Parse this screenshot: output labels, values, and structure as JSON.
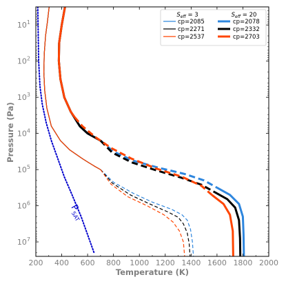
{
  "chart_data": {
    "type": "line",
    "title": "",
    "xlabel": "Temperature (K)",
    "ylabel": "Pressure (Pa)",
    "xlim": [
      200,
      2000
    ],
    "ylim_log10": [
      0.5,
      7.4
    ],
    "y_scale": "log",
    "y_inverted": true,
    "x_ticks": [
      "200",
      "400",
      "600",
      "800",
      "1000",
      "1200",
      "1400",
      "1600",
      "1800",
      "2000"
    ],
    "y_ticks": [
      {
        "base": "10",
        "exp": "1"
      },
      {
        "base": "10",
        "exp": "2"
      },
      {
        "base": "10",
        "exp": "3"
      },
      {
        "base": "10",
        "exp": "4"
      },
      {
        "base": "10",
        "exp": "5"
      },
      {
        "base": "10",
        "exp": "6"
      },
      {
        "base": "10",
        "exp": "7"
      }
    ],
    "legend": {
      "placement": "top-right",
      "col1_head": {
        "main": "S",
        "sub": "eff",
        "rest": " = 3"
      },
      "col2_head": {
        "main": "S",
        "sub": "eff",
        "rest": " = 20"
      },
      "entries_col1": [
        "cp=2085",
        "cp=2271",
        "cp=2537"
      ],
      "entries_col2": [
        "cp=2078",
        "cp=2332",
        "cp=2703"
      ]
    },
    "annotation": {
      "main": "P",
      "sub": "SAT"
    },
    "series": [
      {
        "name": "cp=2085",
        "group": "S_eff=3",
        "color": "#2e86de",
        "solid": [
          [
            303,
            0.5
          ],
          [
            290,
            0.9
          ],
          [
            275,
            1.3
          ],
          [
            265,
            1.8
          ],
          [
            262,
            2.3
          ],
          [
            268,
            2.8
          ],
          [
            285,
            3.3
          ],
          [
            320,
            3.8
          ],
          [
            390,
            4.2
          ],
          [
            460,
            4.45
          ],
          [
            560,
            4.7
          ],
          [
            650,
            4.9
          ],
          [
            700,
            5.0
          ]
        ],
        "dashed": [
          [
            700,
            5.0
          ],
          [
            800,
            5.35
          ],
          [
            950,
            5.65
          ],
          [
            1100,
            5.9
          ],
          [
            1250,
            6.1
          ],
          [
            1330,
            6.25
          ],
          [
            1370,
            6.4
          ],
          [
            1395,
            6.65
          ],
          [
            1410,
            7.0
          ],
          [
            1418,
            7.4
          ]
        ]
      },
      {
        "name": "cp=2271",
        "group": "S_eff=3",
        "color": "#000000",
        "solid": [
          [
            303,
            0.5
          ],
          [
            290,
            0.9
          ],
          [
            275,
            1.3
          ],
          [
            265,
            1.8
          ],
          [
            262,
            2.3
          ],
          [
            268,
            2.8
          ],
          [
            285,
            3.3
          ],
          [
            320,
            3.8
          ],
          [
            390,
            4.2
          ],
          [
            460,
            4.45
          ],
          [
            560,
            4.7
          ],
          [
            650,
            4.9
          ],
          [
            700,
            5.0
          ]
        ],
        "dashed": [
          [
            700,
            5.0
          ],
          [
            790,
            5.37
          ],
          [
            930,
            5.7
          ],
          [
            1080,
            5.95
          ],
          [
            1220,
            6.17
          ],
          [
            1300,
            6.32
          ],
          [
            1340,
            6.5
          ],
          [
            1370,
            6.75
          ],
          [
            1385,
            7.05
          ],
          [
            1392,
            7.4
          ]
        ]
      },
      {
        "name": "cp=2537",
        "group": "S_eff=3",
        "color": "#ff4500",
        "solid": [
          [
            303,
            0.5
          ],
          [
            290,
            0.9
          ],
          [
            275,
            1.3
          ],
          [
            265,
            1.8
          ],
          [
            262,
            2.3
          ],
          [
            268,
            2.8
          ],
          [
            285,
            3.3
          ],
          [
            320,
            3.8
          ],
          [
            390,
            4.2
          ],
          [
            460,
            4.45
          ],
          [
            560,
            4.7
          ],
          [
            650,
            4.9
          ],
          [
            700,
            5.0
          ]
        ],
        "dashed": [
          [
            700,
            5.0
          ],
          [
            780,
            5.4
          ],
          [
            910,
            5.75
          ],
          [
            1060,
            6.0
          ],
          [
            1190,
            6.25
          ],
          [
            1260,
            6.45
          ],
          [
            1310,
            6.7
          ],
          [
            1340,
            7.0
          ],
          [
            1350,
            7.4
          ]
        ]
      },
      {
        "name": "cp=2078",
        "group": "S_eff=20",
        "color": "#2e86de",
        "solid": [
          [
            425,
            0.5
          ],
          [
            400,
            1.0
          ],
          [
            380,
            1.5
          ],
          [
            378,
            2.0
          ],
          [
            390,
            2.5
          ],
          [
            420,
            3.0
          ],
          [
            470,
            3.4
          ],
          [
            540,
            3.8
          ],
          [
            600,
            4.0
          ],
          [
            700,
            4.2
          ]
        ],
        "dashed": [
          [
            700,
            4.2
          ],
          [
            800,
            4.5
          ],
          [
            950,
            4.75
          ],
          [
            1150,
            4.95
          ],
          [
            1350,
            5.12
          ],
          [
            1500,
            5.3
          ],
          [
            1600,
            5.5
          ]
        ],
        "solid2": [
          [
            1600,
            5.5
          ],
          [
            1700,
            5.7
          ],
          [
            1770,
            5.95
          ],
          [
            1800,
            6.3
          ],
          [
            1805,
            6.8
          ],
          [
            1808,
            7.4
          ]
        ]
      },
      {
        "name": "cp=2332",
        "group": "S_eff=20",
        "color": "#000000",
        "solid": [
          [
            425,
            0.5
          ],
          [
            400,
            1.0
          ],
          [
            380,
            1.5
          ],
          [
            378,
            2.0
          ],
          [
            390,
            2.5
          ],
          [
            420,
            3.0
          ],
          [
            470,
            3.4
          ],
          [
            540,
            3.8
          ],
          [
            600,
            4.0
          ],
          [
            700,
            4.2
          ]
        ],
        "dashed": [
          [
            700,
            4.2
          ],
          [
            790,
            4.53
          ],
          [
            940,
            4.8
          ],
          [
            1130,
            5.02
          ],
          [
            1320,
            5.22
          ],
          [
            1480,
            5.42
          ],
          [
            1580,
            5.62
          ]
        ],
        "solid2": [
          [
            1580,
            5.62
          ],
          [
            1680,
            5.82
          ],
          [
            1740,
            6.05
          ],
          [
            1770,
            6.4
          ],
          [
            1778,
            6.9
          ],
          [
            1780,
            7.4
          ]
        ]
      },
      {
        "name": "cp=2703",
        "group": "S_eff=20",
        "color": "#ff4500",
        "solid": [
          [
            425,
            0.5
          ],
          [
            400,
            1.0
          ],
          [
            380,
            1.5
          ],
          [
            378,
            2.0
          ],
          [
            390,
            2.5
          ],
          [
            420,
            3.0
          ],
          [
            470,
            3.4
          ],
          [
            500,
            3.55
          ]
        ],
        "dashed": [
          [
            500,
            3.55
          ],
          [
            560,
            3.8
          ],
          [
            660,
            4.1
          ],
          [
            780,
            4.4
          ],
          [
            940,
            4.7
          ],
          [
            1130,
            4.97
          ],
          [
            1330,
            5.2
          ],
          [
            1480,
            5.45
          ],
          [
            1560,
            5.7
          ]
        ],
        "solid2": [
          [
            1560,
            5.7
          ],
          [
            1650,
            5.95
          ],
          [
            1700,
            6.25
          ],
          [
            1722,
            6.7
          ],
          [
            1725,
            7.4
          ]
        ]
      },
      {
        "name": "",
        "color": "#0000cc",
        "dotted": true,
        "points": [
          [
            215,
            0.5
          ],
          [
            218,
            1.2
          ],
          [
            222,
            2.0
          ],
          [
            232,
            2.7
          ],
          [
            250,
            3.2
          ],
          [
            280,
            3.7
          ],
          [
            320,
            4.2
          ],
          [
            370,
            4.7
          ],
          [
            420,
            5.2
          ],
          [
            480,
            5.7
          ],
          [
            550,
            6.3
          ],
          [
            610,
            6.9
          ],
          [
            650,
            7.3
          ]
        ]
      }
    ]
  }
}
